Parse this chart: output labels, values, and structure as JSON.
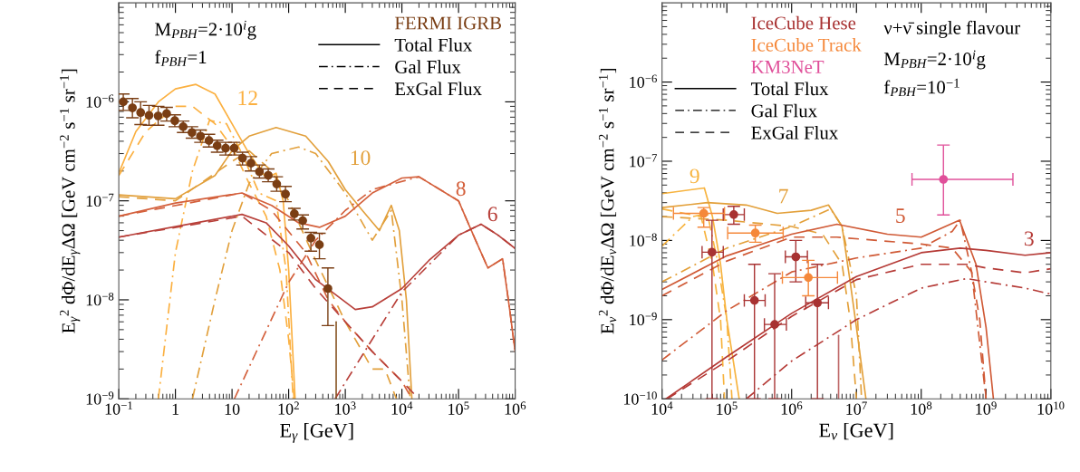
{
  "chart_data": [
    {
      "type": "line",
      "log": "xy",
      "legend": "top right",
      "xlabel": "E$_{γ}$ [GeV]",
      "ylabel": "E$_{γ}$$^{2}$ dΦ/dE$_{γ}$ΔΩ [GeV cm$^{−2}$ s$^{−1}$ sr$^{−1}$]",
      "xlim": [
        0.1,
        1000000
      ],
      "ylim": [
        1e-09,
        1e-05
      ],
      "xticks": [
        {
          "value": 0.1,
          "label": "10$^{−1}$"
        },
        1,
        10,
        {
          "value": 100,
          "label": "10$^{2}$"
        },
        {
          "value": 1000,
          "label": "10$^{3}$"
        },
        {
          "value": 10000,
          "label": "10$^{4}$"
        },
        {
          "value": 100000,
          "label": "10$^{5}$"
        },
        {
          "value": 1000000,
          "label": "10$^{6}$"
        }
      ],
      "yticks": [
        {
          "value": 1e-09,
          "label": "10$^{−9}$"
        },
        {
          "value": 1e-08,
          "label": "10$^{−8}$"
        },
        {
          "value": 1e-07,
          "label": "10$^{−7}$"
        },
        {
          "value": 1e-06,
          "label": "10$^{−6}$"
        }
      ],
      "annotations": [
        "M$_{PBH}$=2·10$^{i}$g",
        "f$_{PBH}$=1",
        "Total Flux",
        "Gal Flux",
        "ExGal Flux"
      ],
      "series": [
        {
          "name": "12",
          "line_style": "solid",
          "color": "#fbb040",
          "x": [
            0.1,
            0.2,
            0.5,
            1,
            2.3,
            5,
            10,
            20,
            40,
            60,
            80,
            100,
            130
          ],
          "values": [
            1.9e-07,
            5e-07,
            1e-06,
            1.35e-06,
            1.5e-06,
            1.2e-06,
            6e-07,
            3e-07,
            1.7e-07,
            1.9e-07,
            1e-07,
            2e-08,
            1e-09
          ]
        },
        {
          "type": "line",
          "line_style": "dashdot",
          "color": "#fbb040",
          "x": [
            0.5,
            1,
            2,
            4,
            8,
            15,
            30,
            60,
            90,
            120
          ],
          "values": [
            1e-09,
            3e-08,
            2e-07,
            6.5e-07,
            6e-07,
            3e-07,
            1.2e-07,
            1e-07,
            2e-08,
            1e-09
          ]
        },
        {
          "type": "line",
          "line_style": "dashed",
          "color": "#fbb040",
          "x": [
            0.1,
            0.3,
            1,
            2,
            5,
            10,
            20,
            40,
            70,
            100,
            125
          ],
          "values": [
            1.8e-07,
            5e-07,
            9e-07,
            9e-07,
            6e-07,
            3.5e-07,
            1.5e-07,
            7e-08,
            2e-08,
            4e-09,
            1e-09
          ]
        },
        {
          "name": "10",
          "line_style": "solid",
          "color": "#e2a03c",
          "x": [
            0.1,
            1,
            5,
            10,
            20,
            60,
            200,
            500,
            1000,
            2000,
            4000,
            6500,
            9000,
            12000,
            15000
          ],
          "values": [
            1.15e-07,
            1.05e-07,
            1.8e-07,
            3.2e-07,
            4.5e-07,
            5.5e-07,
            4.5e-07,
            2.5e-07,
            1.3e-07,
            8e-08,
            5e-08,
            9e-08,
            5e-08,
            1e-08,
            1e-09
          ]
        },
        {
          "type": "line",
          "line_style": "dashdot",
          "color": "#e2a03c",
          "x": [
            2,
            5,
            10,
            20,
            50,
            150,
            300,
            1000,
            3000,
            6500,
            10000,
            14000
          ],
          "values": [
            1e-09,
            1e-08,
            5e-08,
            1.5e-07,
            3e-07,
            3.5e-07,
            3e-07,
            1.2e-07,
            4e-08,
            8e-08,
            1e-08,
            1e-09
          ]
        },
        {
          "type": "line",
          "line_style": "dashed",
          "color": "#e2a03c",
          "x": [
            0.1,
            1,
            10,
            20,
            50,
            100,
            300,
            1000,
            3000,
            5000,
            8000
          ],
          "values": [
            1.1e-07,
            1e-07,
            2.5e-07,
            3.2e-07,
            2e-07,
            1e-07,
            2.5e-08,
            6e-09,
            2e-09,
            2e-09,
            1e-09
          ]
        },
        {
          "name": "8",
          "line_style": "solid",
          "color": "#d4603c",
          "x": [
            0.1,
            1,
            15,
            50,
            150,
            350,
            1000,
            3000,
            10000,
            20000,
            100000,
            200000,
            330000,
            600000,
            800000,
            1000000
          ],
          "values": [
            7e-08,
            9.5e-08,
            1.2e-07,
            9e-08,
            6e-08,
            5.4e-08,
            7e-08,
            1.2e-07,
            1.7e-07,
            1.75e-07,
            1e-07,
            4e-08,
            2.1e-08,
            2.6e-08,
            8e-09,
            3e-09
          ]
        },
        {
          "type": "line",
          "line_style": "dashdot",
          "color": "#d4603c",
          "x": [
            11,
            100,
            300,
            1000,
            3000,
            20000,
            100000,
            200000,
            330000,
            600000,
            800000,
            1000000
          ],
          "values": [
            1e-09,
            1.5e-08,
            4e-08,
            8e-08,
            1.3e-07,
            1.75e-07,
            1e-07,
            4e-08,
            2.1e-08,
            2.6e-08,
            8e-09,
            3e-09
          ]
        },
        {
          "type": "line",
          "line_style": "dashed",
          "color": "#d4603c",
          "x": [
            0.1,
            15,
            50,
            200,
            500,
            1000,
            3000,
            10000,
            15000
          ],
          "values": [
            7e-08,
            1.2e-07,
            8e-08,
            3e-08,
            1e-08,
            6e-09,
            3e-09,
            1.5e-09,
            1e-09
          ]
        },
        {
          "name": "6",
          "line_style": "solid",
          "color": "#b8403a",
          "x": [
            0.1,
            1,
            15,
            40,
            100,
            300,
            1500,
            3000,
            10000,
            30000,
            100000,
            250000,
            500000,
            1000000
          ],
          "values": [
            4.3e-08,
            5.5e-08,
            7.3e-08,
            6e-08,
            3.5e-08,
            1.6e-08,
            8e-09,
            8.5e-09,
            1.3e-08,
            2.5e-08,
            4.5e-08,
            5.8e-08,
            4.5e-08,
            3.3e-08
          ]
        },
        {
          "type": "line",
          "line_style": "dashdot",
          "color": "#b8403a",
          "x": [
            660,
            3000,
            10000,
            100000,
            250000,
            500000,
            1000000
          ],
          "values": [
            1e-09,
            4e-09,
            1.2e-08,
            4.5e-08,
            5.8e-08,
            4.5e-08,
            3.3e-08
          ]
        },
        {
          "type": "line",
          "line_style": "dashed",
          "color": "#b8403a",
          "x": [
            0.1,
            15,
            100,
            300,
            1000,
            3000,
            10000,
            20000
          ],
          "values": [
            4.3e-08,
            7e-08,
            3e-08,
            1.3e-08,
            6e-09,
            3e-09,
            1.5e-09,
            1e-09
          ]
        },
        {
          "type": "scatter",
          "name": "FERMI IGRB",
          "marker": "circle",
          "color": "#7a3e14",
          "x": [
            0.12,
            0.174,
            0.243,
            0.342,
            0.496,
            0.7,
            0.975,
            1.37,
            1.96,
            2.77,
            3.91,
            5.46,
            7.7,
            10.9,
            15.3,
            21.6,
            30.5,
            43.6,
            61.5,
            87.9,
            126,
            177,
            247,
            349,
            493
          ],
          "values": [
            1e-06,
            8.7e-07,
            7.8e-07,
            7.3e-07,
            7.2e-07,
            7.6e-07,
            6.45e-07,
            5.6e-07,
            4.9e-07,
            4.5e-07,
            4.07e-07,
            3.6e-07,
            3.4e-07,
            3.4e-07,
            2.7e-07,
            2.4e-07,
            1.97e-07,
            1.81e-07,
            1.48e-07,
            1.17e-07,
            7.4e-08,
            6.3e-08,
            4.2e-08,
            3.6e-08,
            1.3e-08
          ],
          "errors": [
            [
              8.2e-07,
              1.2e-06
            ],
            [
              6.9e-07,
              1.08e-06
            ],
            [
              5.9e-07,
              1e-06
            ],
            [
              5.8e-07,
              9.2e-07
            ],
            [
              5.8e-07,
              9e-07
            ],
            [
              6.4e-07,
              8.8e-07
            ],
            [
              5.6e-07,
              7.4e-07
            ],
            [
              4.9e-07,
              6.4e-07
            ],
            [
              4.3e-07,
              5.6e-07
            ],
            [
              3.9e-07,
              5.2e-07
            ],
            [
              3.5e-07,
              4.7e-07
            ],
            [
              3.1e-07,
              4.1e-07
            ],
            [
              2.9e-07,
              3.9e-07
            ],
            [
              2.9e-07,
              3.9e-07
            ],
            [
              2.3e-07,
              3.1e-07
            ],
            [
              2e-07,
              2.8e-07
            ],
            [
              1.7e-07,
              2.3e-07
            ],
            [
              1.56e-07,
              2.1e-07
            ],
            [
              1.25e-07,
              1.75e-07
            ],
            [
              9.8e-08,
              1.4e-07
            ],
            [
              6.4e-08,
              8.4e-08
            ],
            [
              5.2e-08,
              7.2e-08
            ],
            [
              3.1e-08,
              4.8e-08
            ],
            [
              2.6e-08,
              4.7e-08
            ],
            [
              5.5e-09,
              2.1e-08
            ]
          ]
        },
        {
          "type": "line",
          "line_style": "solid",
          "color": "#8b5a2b",
          "x": [
            690,
            690
          ],
          "values": [
            1e-09,
            6e-09
          ]
        }
      ]
    },
    {
      "type": "line",
      "log": "xy",
      "legend": "top left",
      "xlabel": "E$_{ν}$ [GeV]",
      "ylabel": "E$_{ν}$$^{2}$ dΦ/dE$_{ν}$ΔΩ [GeV cm$^{−2}$ s$^{−1}$ sr$^{−1}$]",
      "xlim": [
        10000,
        10000000000
      ],
      "ylim": [
        1e-10,
        1e-05
      ],
      "xticks": [
        {
          "value": 10000,
          "label": "10$^{4}$"
        },
        {
          "value": 100000,
          "label": "10$^{5}$"
        },
        {
          "value": 1000000,
          "label": "10$^{6}$"
        },
        {
          "value": 10000000,
          "label": "10$^{7}$"
        },
        {
          "value": 100000000,
          "label": "10$^{8}$"
        },
        {
          "value": 1000000000,
          "label": "10$^{9}$"
        },
        {
          "value": 10000000000,
          "label": "10$^{10}$"
        }
      ],
      "yticks": [
        {
          "value": 1e-10,
          "label": "10$^{−10}$"
        },
        {
          "value": 1e-09,
          "label": "10$^{−9}$"
        },
        {
          "value": 1e-08,
          "label": "10$^{−8}$"
        },
        {
          "value": 1e-07,
          "label": "10$^{−7}$"
        },
        {
          "value": 1e-06,
          "label": "10$^{−6}$"
        }
      ],
      "annotations": [
        "ν+ν̄ single flavour",
        "M$_{PBH}$=2·10$^{i}$g",
        "f$_{PBH}$=10$^{−1}$",
        "Total Flux",
        "Gal Flux",
        "ExGal Flux"
      ],
      "series": [
        {
          "name": "9",
          "line_style": "solid",
          "color": "#f7b33e",
          "x": [
            10000,
            45000,
            60000,
            80000,
            100000,
            155000
          ],
          "values": [
            3.9e-08,
            4.6e-08,
            2e-08,
            5e-09,
            1e-09,
            1e-10
          ]
        },
        {
          "type": "line",
          "line_style": "dashdot",
          "color": "#f7b33e",
          "x": [
            10000,
            30000,
            50000,
            70000,
            100000,
            120000
          ],
          "values": [
            8.5e-09,
            2e-08,
            2.2e-08,
            6e-09,
            1e-09,
            1e-10
          ]
        },
        {
          "type": "line",
          "line_style": "dashed",
          "color": "#f7b33e",
          "x": [
            10000,
            40000,
            60000,
            80000,
            92000
          ],
          "values": [
            2.5e-08,
            2e-08,
            5e-09,
            1e-09,
            1e-10
          ]
        },
        {
          "name": "7",
          "line_style": "solid",
          "color": "#e3a03a",
          "x": [
            10000,
            50000,
            200000,
            600000,
            2000000,
            3700000,
            6000000,
            8000000,
            10000000,
            14000000
          ],
          "values": [
            2.6e-08,
            3e-08,
            2.8e-08,
            2.2e-08,
            2.4e-08,
            2.8e-08,
            1.5e-08,
            3e-09,
            8e-10,
            1e-10
          ]
        },
        {
          "type": "line",
          "line_style": "dashdot",
          "color": "#e3a03a",
          "x": [
            10000,
            100000,
            1000000,
            4000000,
            6000000,
            10000000,
            12000000
          ],
          "values": [
            3e-09,
            8e-09,
            1.5e-08,
            2.5e-08,
            1.5e-08,
            2e-09,
            1e-10
          ]
        },
        {
          "type": "line",
          "line_style": "dashed",
          "color": "#e3a03a",
          "x": [
            10000,
            100000,
            1000000,
            3000000,
            6000000,
            8000000,
            10000000
          ],
          "values": [
            2e-08,
            1.8e-08,
            1.5e-08,
            1.2e-08,
            5e-09,
            1e-09,
            1e-10
          ]
        },
        {
          "name": "5",
          "line_style": "solid",
          "color": "#d05a36",
          "x": [
            10000,
            100000,
            1000000,
            5000000,
            30000000,
            100000000,
            390000000,
            700000000,
            1000000000,
            1300000000
          ],
          "values": [
            2.4e-09,
            6.4e-09,
            1.2e-08,
            1.6e-08,
            1.2e-08,
            1.1e-08,
            1.8e-08,
            5e-09,
            8e-10,
            1e-10
          ]
        },
        {
          "type": "line",
          "line_style": "dashdot",
          "color": "#d05a36",
          "x": [
            10000,
            100000,
            1000000,
            10000000,
            100000000,
            300000000,
            400000000,
            600000000,
            1000000000
          ],
          "values": [
            3.1e-10,
            1.3e-09,
            4e-09,
            6e-09,
            8e-09,
            1.3e-08,
            1.8e-08,
            4e-09,
            1e-10
          ]
        },
        {
          "type": "line",
          "line_style": "dashed",
          "color": "#d05a36",
          "x": [
            10000,
            100000,
            1000000,
            5000000,
            100000000,
            300000000,
            600000000,
            800000000,
            1000000000
          ],
          "values": [
            2e-09,
            5.5e-09,
            1.1e-08,
            1.1e-08,
            9e-09,
            8e-09,
            4e-09,
            1e-09,
            1e-10
          ]
        },
        {
          "name": "3",
          "line_style": "solid",
          "color": "#b53a36",
          "x": [
            11500,
            100000,
            1000000,
            10000000,
            100000000,
            400000000,
            1000000000,
            4000000000,
            10000000000
          ],
          "values": [
            1e-10,
            3.4e-10,
            1.2e-09,
            3.5e-09,
            7e-09,
            8e-09,
            7.5e-09,
            6.5e-09,
            7e-09
          ]
        },
        {
          "type": "line",
          "line_style": "dashdot",
          "color": "#b53a36",
          "x": [
            200000,
            1000000,
            10000000,
            100000000,
            500000000,
            1000000000,
            4000000000,
            10000000000
          ],
          "values": [
            1e-10,
            3e-10,
            1e-09,
            2.5e-09,
            3.3e-09,
            3e-09,
            2.5e-09,
            2.1e-09
          ]
        },
        {
          "type": "line",
          "line_style": "dashed",
          "color": "#b53a36",
          "x": [
            12000,
            100000,
            1000000,
            10000000,
            100000000,
            500000000,
            1000000000,
            4000000000,
            10000000000
          ],
          "values": [
            1e-10,
            3e-10,
            1.1e-09,
            3.2e-09,
            5e-09,
            5e-09,
            4.5e-09,
            3.9e-09,
            4.4e-09
          ]
        },
        {
          "type": "scatter",
          "name": "IceCube Hese",
          "marker": "circle",
          "color": "#a83232",
          "x": [
            59000,
            128000,
            267000,
            547000,
            1160000,
            2500000
          ],
          "values": [
            7.1e-09,
            2.12e-08,
            1.75e-09,
            8.7e-10,
            6.2e-09,
            1.63e-09
          ],
          "errors": [
            [
              1e-10,
              1.8e-08
            ],
            [
              1.6e-08,
              2.7e-08
            ],
            [
              1e-10,
              5e-09
            ],
            [
              1e-10,
              3.8e-09
            ],
            [
              3e-09,
              1e-08
            ],
            [
              1e-10,
              5e-09
            ]
          ],
          "xerrors": [
            [
              41500,
              88000
            ],
            [
              88000,
              186000
            ],
            [
              186000,
              390000
            ],
            [
              380000,
              830000
            ],
            [
              800000,
              1750000
            ],
            [
              1650000,
              3700000
            ]
          ]
        },
        {
          "type": "line",
          "line_style": "solid",
          "color": "#c06a6a",
          "x": [
            5300000,
            5300000
          ],
          "values": [
            1e-10,
            6.3e-10
          ]
        },
        {
          "type": "scatter",
          "name": "IceCube Track",
          "marker": "circle",
          "color": "#f5883a",
          "x": [
            44000,
            275000,
            1810000
          ],
          "values": [
            2.2e-08,
            1.24e-08,
            3.4e-09
          ],
          "errors": [
            [
              1.47e-08,
              2.6e-08
            ],
            [
              9.5e-09,
              1.56e-08
            ],
            [
              2e-09,
              5.6e-09
            ]
          ],
          "xerrors": [
            [
              15000,
              92000
            ],
            [
              103000,
              740000
            ],
            [
              720000,
              5100000
            ]
          ]
        },
        {
          "type": "scatter",
          "name": "KM3NeT",
          "marker": "circle",
          "color": "#e0509a",
          "x": [
            220000000
          ],
          "values": [
            5.9e-08
          ],
          "errors": [
            [
              2.1e-08,
              1.6e-07
            ]
          ],
          "xerrors": [
            [
              72000000,
              2600000000
            ]
          ]
        }
      ]
    }
  ]
}
